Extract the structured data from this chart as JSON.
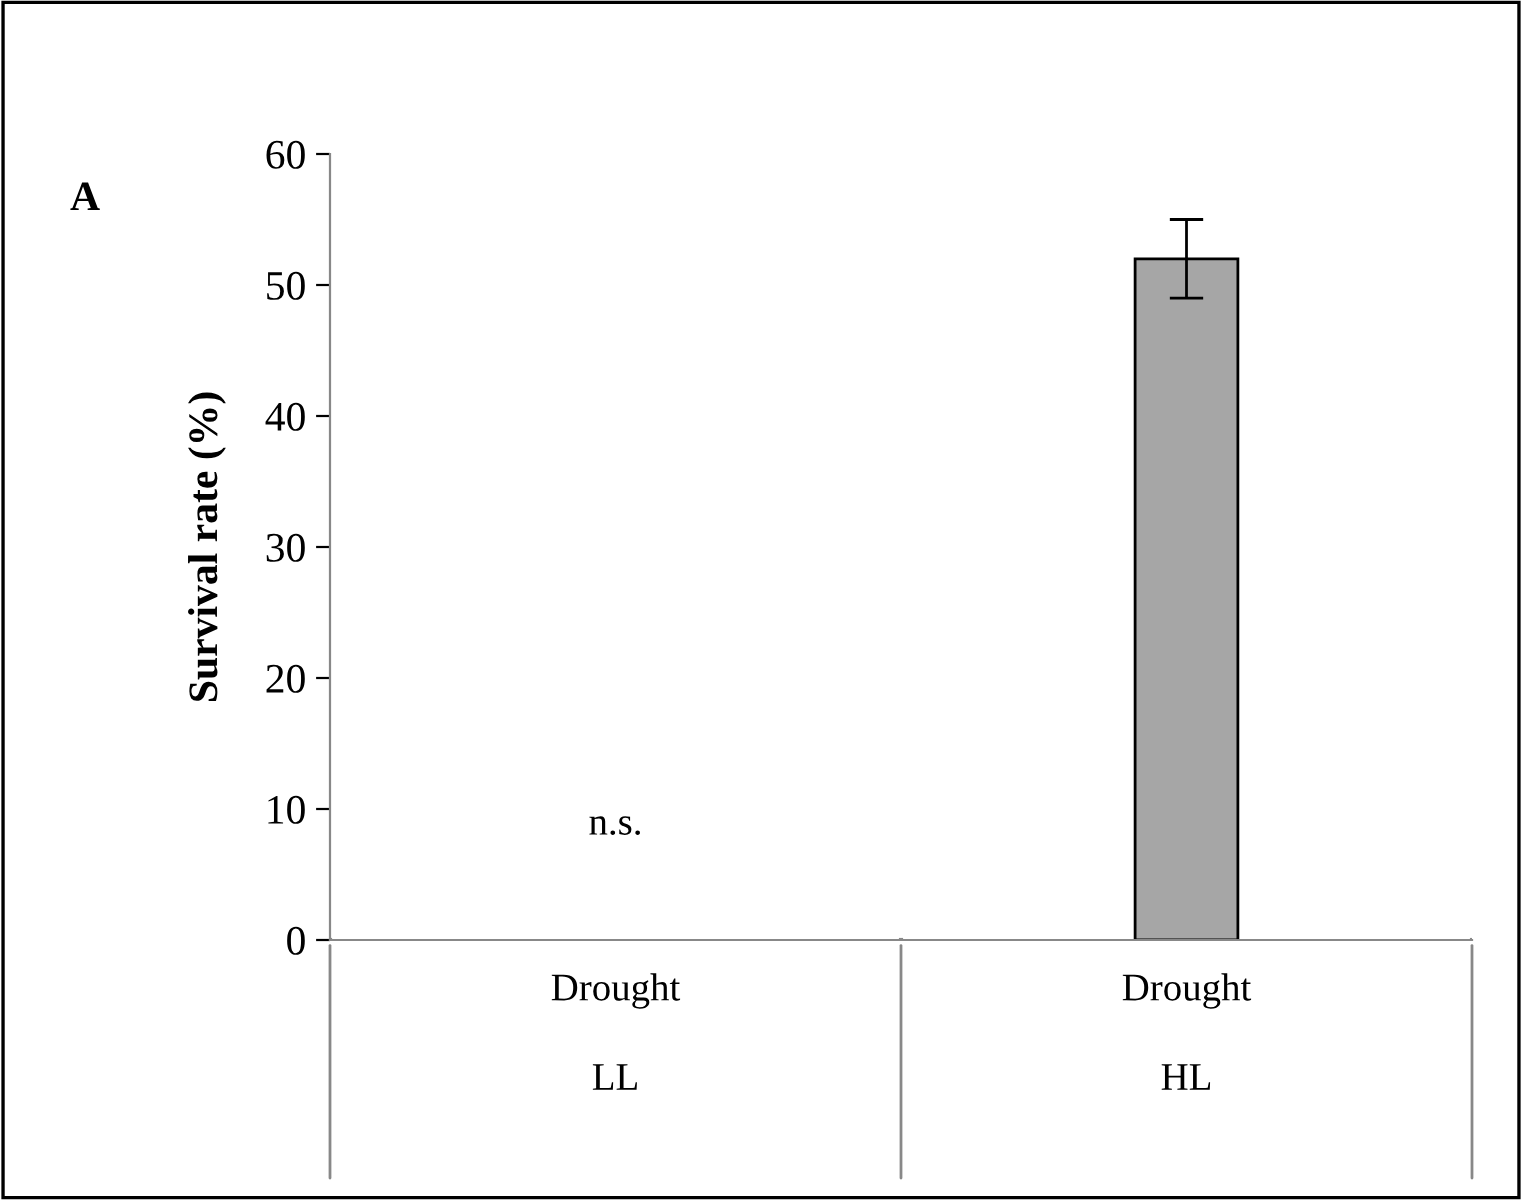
{
  "chart_data": {
    "type": "bar",
    "title": "A",
    "ylabel": "Survival rate (%)",
    "categories": [
      "Drought\nLL",
      "Drought\nHL"
    ],
    "values": [
      0,
      52
    ],
    "errors": [
      null,
      [
        49,
        55
      ]
    ],
    "color": "#a6a6a6",
    "ylim": [
      0,
      60
    ],
    "yticks": [
      0,
      10,
      20,
      30,
      40,
      50,
      60
    ],
    "grid": false,
    "annotations": [
      {
        "text": "n.s.",
        "x": "Drought\nLL",
        "y": 0
      }
    ]
  }
}
